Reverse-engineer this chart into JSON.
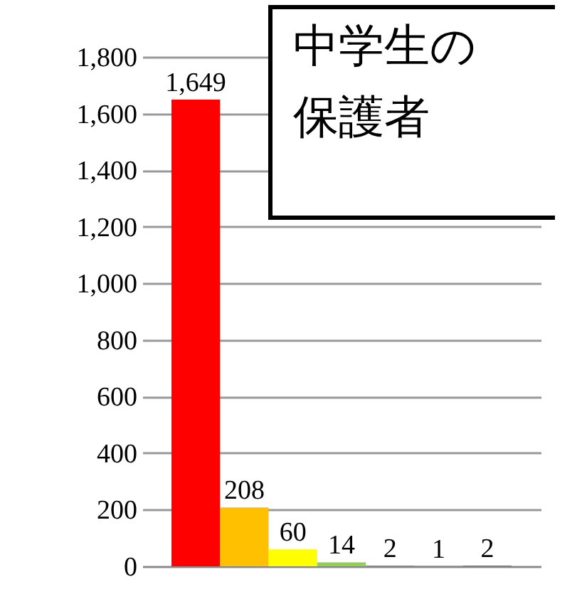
{
  "chart_data": {
    "type": "bar",
    "title": "中学生の保護者",
    "categories": [
      null,
      null,
      null,
      null,
      null,
      null,
      null
    ],
    "values": [
      1649,
      208,
      60,
      14,
      2,
      1,
      2
    ],
    "value_labels": [
      "1,649",
      "208",
      "60",
      "14",
      "2",
      "1",
      "2"
    ],
    "colors": [
      "#ff0000",
      "#ffc000",
      "#ffff00",
      "#92d050",
      "#00b050",
      "#00b0f0",
      "#0070c0"
    ],
    "ylim": [
      0,
      1800
    ],
    "yticks": [
      0,
      200,
      400,
      600,
      800,
      {
        "value": 1000,
        "label": "1,000"
      },
      {
        "value": 1200,
        "label": "1,200"
      },
      {
        "value": 1400,
        "label": "1,400"
      },
      {
        "value": 1600,
        "label": "1,600"
      },
      {
        "value": 1800,
        "label": "1,800"
      }
    ],
    "grid": "y"
  }
}
